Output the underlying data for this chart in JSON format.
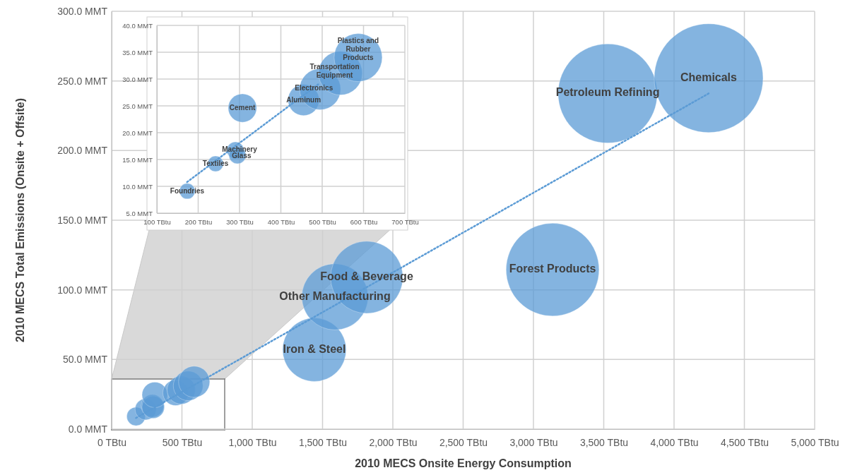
{
  "chart_data": [
    {
      "type": "bubble",
      "xlabel": "2010 MECS Onsite Energy Consumption",
      "ylabel": "2010 MECS Total Emissions (Onsite + Offsite)",
      "grid": true,
      "xlim": [
        0,
        5000
      ],
      "xticks": [
        {
          "value": 0,
          "label": "0 TBtu"
        },
        {
          "value": 500,
          "label": "500 TBtu"
        },
        {
          "value": 1000,
          "label": "1,000 TBtu"
        },
        {
          "value": 1500,
          "label": "1,500 TBtu"
        },
        {
          "value": 2000,
          "label": "2,000 TBtu"
        },
        {
          "value": 2500,
          "label": "2,500 TBtu"
        },
        {
          "value": 3000,
          "label": "3,000 TBtu"
        },
        {
          "value": 3500,
          "label": "3,500 TBtu"
        },
        {
          "value": 4000,
          "label": "4,000 TBtu"
        },
        {
          "value": 4500,
          "label": "4,500 TBtu"
        },
        {
          "value": 5000,
          "label": "5,000 TBtu"
        }
      ],
      "ylim": [
        0,
        300
      ],
      "yticks": [
        {
          "value": 0,
          "label": "0.0 MMT"
        },
        {
          "value": 50,
          "label": "50.0 MMT"
        },
        {
          "value": 100,
          "label": "100.0 MMT"
        },
        {
          "value": 150,
          "label": "150.0 MMT"
        },
        {
          "value": 200,
          "label": "200.0 MMT"
        },
        {
          "value": 250,
          "label": "250.0 MMT"
        },
        {
          "value": 300,
          "label": "300.0 MMT"
        }
      ],
      "series": [
        {
          "color": "#5b9bd5",
          "x": [
            173.5,
            242,
            290,
            295,
            307,
            455,
            495,
            544,
            587,
            1442,
            1588,
            1814,
            3136,
            3528,
            4246
          ],
          "values": [
            9.1,
            14.2,
            16.7,
            15.8,
            24.6,
            26.1,
            28.1,
            31.1,
            34.0,
            57,
            95,
            109,
            114.5,
            241,
            252
          ],
          "sizes": [
            0.029,
            0.038,
            0.043,
            0.043,
            0.055,
            0.055,
            0.067,
            0.074,
            0.082,
            0.34,
            0.37,
            0.44,
            0.73,
            0.83,
            1
          ]
        },
        {
          "type": "line",
          "line_style": "dotted",
          "color": "#5b9bd5",
          "x": [
            173,
            4246
          ],
          "values": [
            8,
            241
          ]
        }
      ],
      "annotations": [
        {
          "text": "Chemicals",
          "x": 4246,
          "y": 252
        },
        {
          "text": "Petroleum Refining",
          "x": 3528,
          "y": 241
        },
        {
          "text": "Forest Products",
          "x": 3136,
          "y": 114.5
        },
        {
          "text": "Food & Beverage",
          "x": 1814,
          "y": 109
        },
        {
          "text": "Other Manufacturing",
          "x": 1588,
          "y": 95
        },
        {
          "text": "Iron & Steel",
          "x": 1442,
          "y": 57
        }
      ]
    },
    {
      "type": "bubble",
      "grid": true,
      "xlim": [
        100,
        700
      ],
      "xticks": [
        {
          "value": 100,
          "label": "100 TBtu"
        },
        {
          "value": 200,
          "label": "200 TBtu"
        },
        {
          "value": 300,
          "label": "300 TBtu"
        },
        {
          "value": 400,
          "label": "400 TBtu"
        },
        {
          "value": 500,
          "label": "500 TBtu"
        },
        {
          "value": 600,
          "label": "600 TBtu"
        },
        {
          "value": 700,
          "label": "700 TBtu"
        }
      ],
      "ylim": [
        5,
        40
      ],
      "yticks": [
        {
          "value": 5,
          "label": "5.0 MMT"
        },
        {
          "value": 10,
          "label": "10.0 MMT"
        },
        {
          "value": 15,
          "label": "15.0 MMT"
        },
        {
          "value": 20,
          "label": "20.0 MMT"
        },
        {
          "value": 25,
          "label": "25.0 MMT"
        },
        {
          "value": 30,
          "label": "30.0 MMT"
        },
        {
          "value": 35,
          "label": "35.0 MMT"
        },
        {
          "value": 40,
          "label": "40.0 MMT"
        }
      ],
      "series": [
        {
          "color": "#5b9bd5",
          "x": [
            173.5,
            242,
            290,
            295,
            307,
            455,
            495,
            544,
            587
          ],
          "values": [
            9.1,
            14.2,
            16.7,
            15.8,
            24.6,
            26.1,
            28.1,
            31.1,
            34.0
          ],
          "sizes": [
            0.105,
            0.105,
            0.125,
            0.125,
            0.35,
            0.42,
            0.73,
            0.83,
            1
          ]
        },
        {
          "type": "line",
          "line_style": "dotted",
          "color": "#5b9bd5",
          "x": [
            173,
            490
          ],
          "values": [
            10.8,
            29
          ]
        }
      ],
      "annotations": [
        {
          "text": "Foundries",
          "x": 173.5,
          "y": 9.1
        },
        {
          "text": "Textiles",
          "x": 242,
          "y": 14.2
        },
        {
          "text": "Machinery",
          "x": 300,
          "y": 16.9
        },
        {
          "text": "Glass",
          "x": 305,
          "y": 15.7
        },
        {
          "text": "Cement",
          "x": 307,
          "y": 24.6
        },
        {
          "text": "Aluminum",
          "x": 455,
          "y": 26.1
        },
        {
          "text": "Electronics",
          "x": 480,
          "y": 28.3
        },
        {
          "text": "Transportation\nEquipment",
          "x": 530,
          "y": 30.6
        },
        {
          "text": "Plastics and\nRubber\nProducts",
          "x": 587,
          "y": 34.0
        }
      ]
    }
  ]
}
